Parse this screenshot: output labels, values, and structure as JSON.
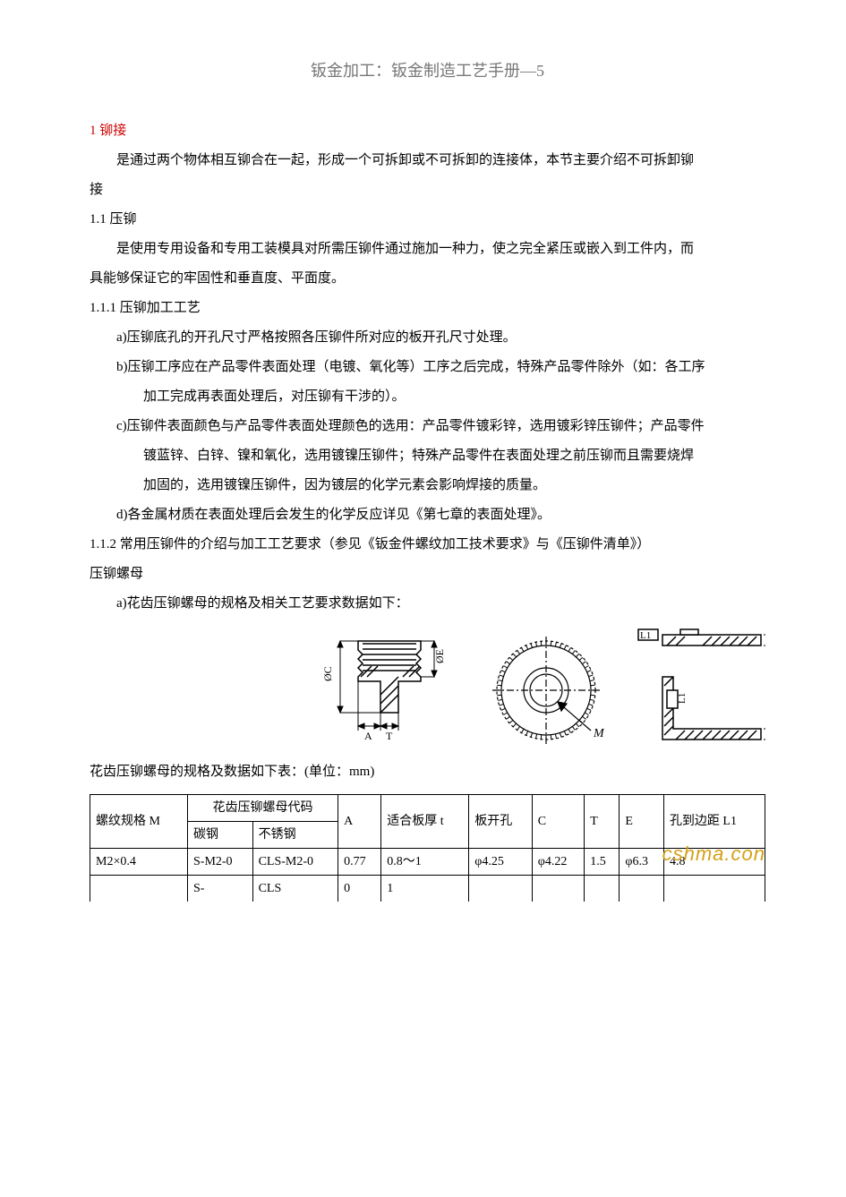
{
  "title": "钣金加工：钣金制造工艺手册—5",
  "section1": "1 铆接",
  "p1": "是通过两个物体相互铆合在一起，形成一个可拆卸或不可拆卸的连接体，本节主要介绍不可拆卸铆",
  "p1b": "接",
  "section11": "1.1 压铆",
  "p2": "是使用专用设备和专用工装模具对所需压铆件通过施加一种力，使之完全紧压或嵌入到工件内，而",
  "p2b": "具能够保证它的牢固性和垂直度、平面度。",
  "section111": "1.1.1 压铆加工工艺",
  "a": "a)压铆底孔的开孔尺寸严格按照各压铆件所对应的板开孔尺寸处理。",
  "b": "b)压铆工序应在产品零件表面处理（电镀、氧化等）工序之后完成，特殊产品零件除外（如：各工序",
  "b2": "加工完成再表面处理后，对压铆有干涉的）。",
  "c": "c)压铆件表面颜色与产品零件表面处理颜色的选用：产品零件镀彩锌，选用镀彩锌压铆件；产品零件",
  "c2": "镀蓝锌、白锌、镍和氧化，选用镀镍压铆件；特殊产品零件在表面处理之前压铆而且需要烧焊",
  "c3": "加固的，选用镀镍压铆件，因为镀层的化学元素会影响焊接的质量。",
  "d": "d)各金属材质在表面处理后会发生的化学反应详见《第七章的表面处理》。",
  "section112": "1.1.2 常用压铆件的介绍与加工工艺要求（参见《钣金件螺纹加工技术要求》与《压铆件清单》）",
  "nut_title": "压铆螺母",
  "a2": "a)花齿压铆螺母的规格及相关工艺要求数据如下：",
  "table_caption": "花齿压铆螺母的规格及数据如下表：(单位：mm)",
  "table": {
    "head": {
      "c1": "螺纹规格 M",
      "c2_top": "花齿压铆螺母代码",
      "c2a": "碳钢",
      "c2b": "不锈钢",
      "c3": "A",
      "c4": "适合板厚 t",
      "c5": "板开孔",
      "c6": "C",
      "c7": "T",
      "c8": "E",
      "c9": "孔到边距 L1"
    },
    "rows": [
      {
        "c1": "M2×0.4",
        "c2a": "S-M2-0",
        "c2b": "CLS-M2-0",
        "c3": "0.77",
        "c4": "0.8～1",
        "c5": "φ4.25",
        "c6": "φ4.22",
        "c7": "1.5",
        "c8": "φ6.3",
        "c9": "4.8"
      },
      {
        "c1": "",
        "c2a": "S-",
        "c2b": "CLS",
        "c3": "0",
        "c4": "1",
        "c5": "",
        "c6": "",
        "c7": "",
        "c8": "",
        "c9": ""
      }
    ]
  },
  "watermark": "cshma.con",
  "diagram_colors": {
    "stroke": "#000000",
    "dim_stroke": "#000000",
    "hatch": "#000000"
  }
}
